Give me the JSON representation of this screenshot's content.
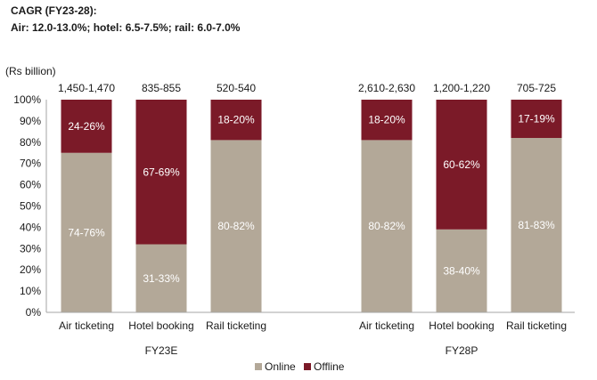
{
  "header": {
    "title": "CAGR (FY23-28):",
    "subtitle": "Air: 12.0-13.0%; hotel: 6.5-7.5%; rail: 6.0-7.0%"
  },
  "chart_data": {
    "type": "bar",
    "stacked": true,
    "ylabel": "(Rs billion)",
    "ylim": [
      0,
      100
    ],
    "yticks": [
      "0%",
      "10%",
      "20%",
      "30%",
      "40%",
      "50%",
      "60%",
      "70%",
      "80%",
      "90%",
      "100%"
    ],
    "groups": [
      {
        "label": "FY23E",
        "categories": [
          "Air ticketing",
          "Hotel booking",
          "Rail ticketing"
        ],
        "totals": [
          "1,450-1,470",
          "835-855",
          "520-540"
        ],
        "online": [
          75,
          32,
          81
        ],
        "online_labels": [
          "74-76%",
          "31-33%",
          "80-82%"
        ],
        "offline": [
          25,
          68,
          19
        ],
        "offline_labels": [
          "24-26%",
          "67-69%",
          "18-20%"
        ]
      },
      {
        "label": "FY28P",
        "categories": [
          "Air ticketing",
          "Hotel booking",
          "Rail ticketing"
        ],
        "totals": [
          "2,610-2,630",
          "1,200-1,220",
          "705-725"
        ],
        "online": [
          81,
          39,
          82
        ],
        "online_labels": [
          "80-82%",
          "38-40%",
          "81-83%"
        ],
        "offline": [
          19,
          61,
          18
        ],
        "offline_labels": [
          "18-20%",
          "60-62%",
          "17-19%"
        ]
      }
    ],
    "legend": [
      {
        "name": "Online",
        "color": "#b3a898"
      },
      {
        "name": "Offline",
        "color": "#7b1a28"
      }
    ],
    "legend_position": "bottom",
    "grid": false
  }
}
